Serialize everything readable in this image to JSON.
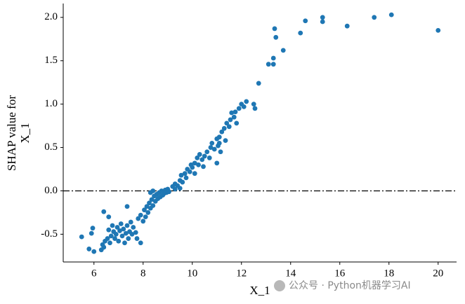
{
  "chart_data": {
    "type": "scatter",
    "xlabel": "X_1",
    "ylabel": [
      "SHAP value for",
      "X_1"
    ],
    "watermark": "公众号 · Python机器学习AI",
    "color": "#1f77b4",
    "hline": 0,
    "xlim": [
      4.75,
      20.75
    ],
    "ylim": [
      -0.82,
      2.16
    ],
    "xticks": [
      6,
      8,
      10,
      12,
      14,
      16,
      18,
      20
    ],
    "yticks": [
      -0.5,
      {
        "value": 0,
        "label": "0.0"
      },
      0.5,
      {
        "value": 1,
        "label": "1.0"
      },
      1.5,
      {
        "value": 2,
        "label": "2.0"
      }
    ],
    "x": [
      5.5,
      5.8,
      5.9,
      6.0,
      5.95,
      6.4,
      6.3,
      6.4,
      6.35,
      6.45,
      6.55,
      6.6,
      6.65,
      6.7,
      6.75,
      6.8,
      6.85,
      6.9,
      6.95,
      7.0,
      7.05,
      7.1,
      7.15,
      7.2,
      7.25,
      7.3,
      7.35,
      7.4,
      7.45,
      7.5,
      7.55,
      6.6,
      7.6,
      7.8,
      7.7,
      7.9,
      8.0,
      8.05,
      8.1,
      8.15,
      8.2,
      8.25,
      8.3,
      8.35,
      8.4,
      8.45,
      8.5,
      8.55,
      8.6,
      8.65,
      8.7,
      8.75,
      8.8,
      8.85,
      8.9,
      8.95,
      9.0,
      9.05,
      7.9,
      8.3,
      8.4,
      7.75,
      7.35,
      9.2,
      9.3,
      9.4,
      9.5,
      9.55,
      9.6,
      9.7,
      9.75,
      9.8,
      9.9,
      9.95,
      10.0,
      10.1,
      10.2,
      10.25,
      10.3,
      10.4,
      10.45,
      10.5,
      9.3,
      10.1,
      9.5,
      10.6,
      10.7,
      10.75,
      10.8,
      10.9,
      11.0,
      11.05,
      11.1,
      11.15,
      11.2,
      11.3,
      11.35,
      11.4,
      11.5,
      11.55,
      11.6,
      11.7,
      11.75,
      11.8,
      11.9,
      12.0,
      12.1,
      12.2,
      12.5,
      12.55,
      11.0,
      11.1,
      12.7,
      13.1,
      13.3,
      13.3,
      13.35,
      13.4,
      13.7,
      14.4,
      14.6,
      15.3,
      15.3,
      16.3,
      17.4,
      18.1,
      20.0
    ],
    "y": [
      -0.53,
      -0.67,
      -0.49,
      -0.7,
      -0.43,
      -0.24,
      -0.68,
      -0.65,
      -0.62,
      -0.58,
      -0.55,
      -0.45,
      -0.6,
      -0.52,
      -0.4,
      -0.47,
      -0.55,
      -0.5,
      -0.42,
      -0.58,
      -0.46,
      -0.38,
      -0.52,
      -0.44,
      -0.6,
      -0.49,
      -0.4,
      -0.55,
      -0.47,
      -0.36,
      -0.5,
      -0.3,
      -0.42,
      -0.32,
      -0.48,
      -0.28,
      -0.35,
      -0.22,
      -0.3,
      -0.18,
      -0.25,
      -0.14,
      -0.2,
      -0.1,
      -0.17,
      -0.06,
      -0.12,
      -0.04,
      -0.09,
      -0.02,
      -0.07,
      0.0,
      -0.05,
      -0.03,
      0.01,
      -0.02,
      0.02,
      -0.01,
      -0.6,
      -0.02,
      0.0,
      -0.55,
      -0.18,
      0.05,
      0.08,
      0.06,
      0.12,
      0.18,
      0.1,
      0.2,
      0.15,
      0.25,
      0.22,
      0.3,
      0.27,
      0.32,
      0.38,
      0.3,
      0.42,
      0.36,
      0.28,
      0.4,
      0.02,
      0.2,
      0.03,
      0.45,
      0.38,
      0.5,
      0.55,
      0.48,
      0.6,
      0.52,
      0.62,
      0.45,
      0.68,
      0.72,
      0.58,
      0.78,
      0.74,
      0.82,
      0.9,
      0.85,
      0.91,
      0.78,
      0.95,
      1.0,
      0.97,
      1.03,
      1.0,
      0.95,
      0.32,
      0.55,
      1.24,
      1.46,
      1.53,
      1.46,
      1.87,
      1.77,
      1.62,
      1.82,
      1.96,
      2.0,
      1.95,
      1.9,
      2.0,
      2.03,
      1.85
    ]
  }
}
